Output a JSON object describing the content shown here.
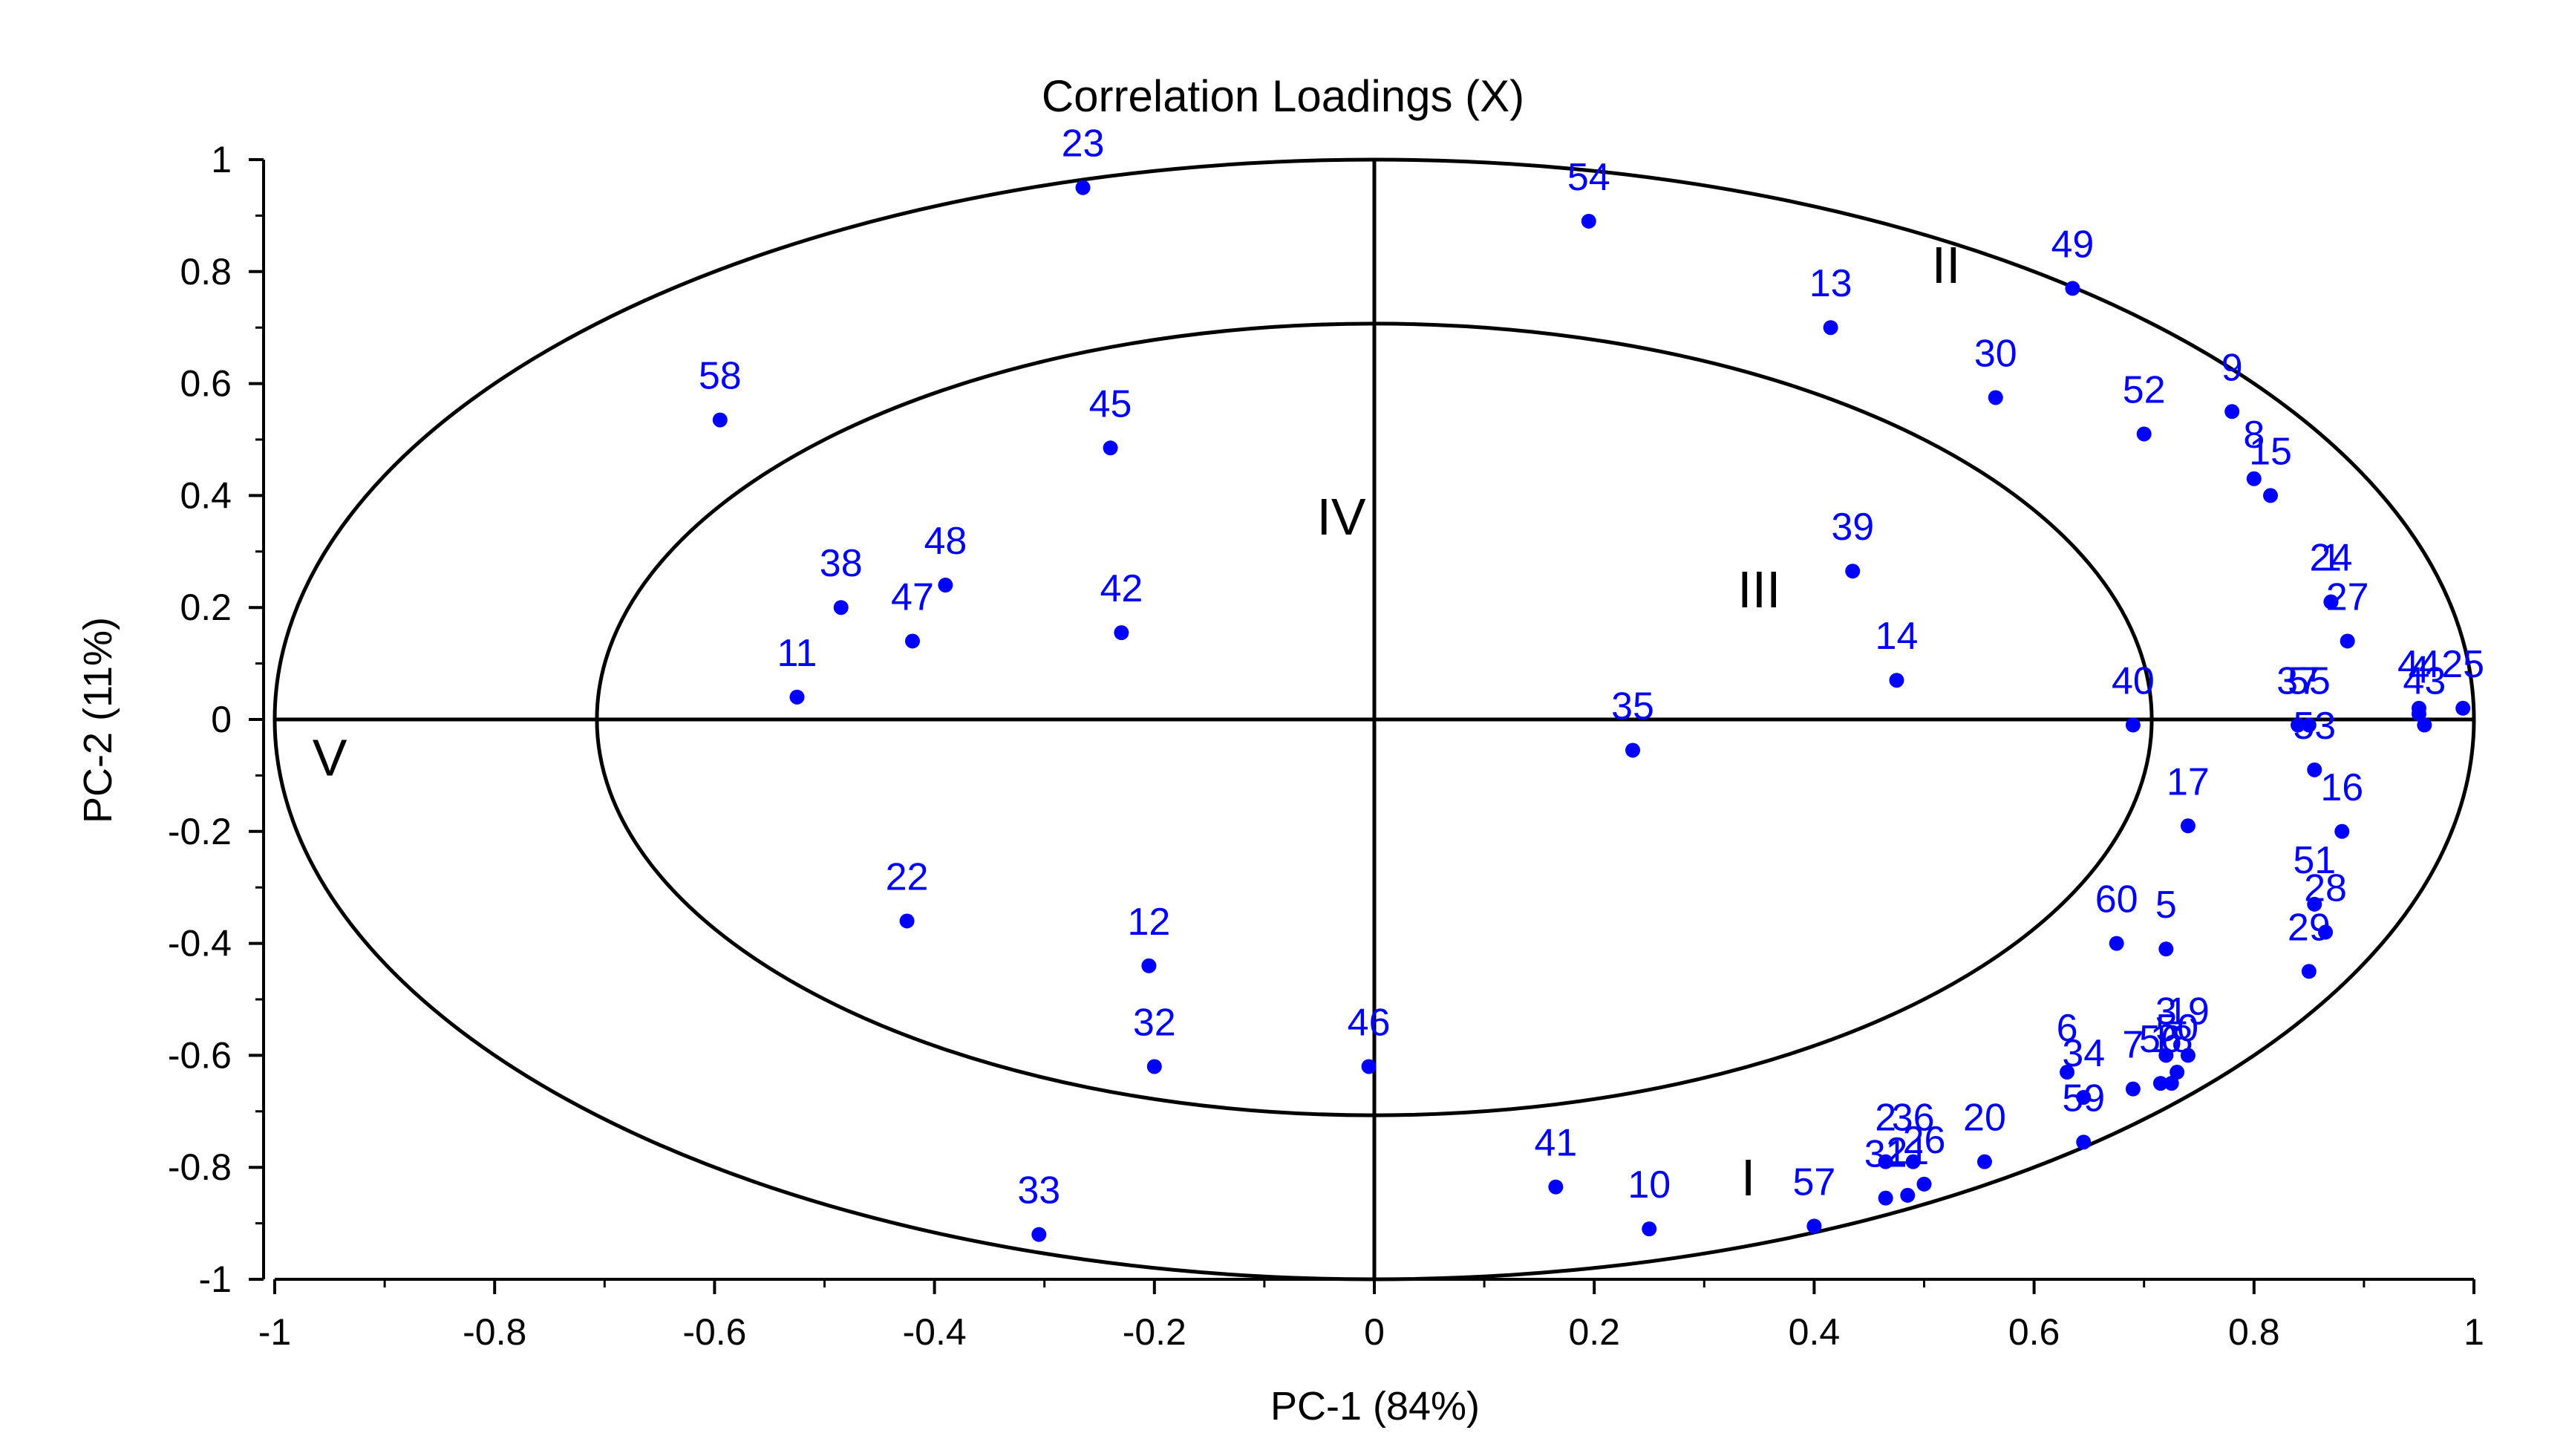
{
  "chart_data": {
    "type": "scatter",
    "title": "Correlation Loadings (X)",
    "xlabel": "PC-1 (84%)",
    "ylabel": "PC-2 (11%)",
    "xlim": [
      -1,
      1
    ],
    "ylim": [
      -1,
      1
    ],
    "xticks": [
      "-1",
      "-0.8",
      "-0.6",
      "-0.4",
      "-0.2",
      "0",
      "0.2",
      "0.4",
      "0.6",
      "0.8",
      "1"
    ],
    "xtick_values": [
      -1,
      -0.8,
      -0.6,
      -0.4,
      -0.2,
      0,
      0.2,
      0.4,
      0.6,
      0.8,
      1
    ],
    "yticks": [
      "1",
      "0.8",
      "0.6",
      "0.4",
      "0.2",
      "0",
      "-0.2",
      "-0.4",
      "-0.6",
      "-0.8",
      "-1"
    ],
    "ytick_values": [
      1,
      0.8,
      0.6,
      0.4,
      0.2,
      0,
      -0.2,
      -0.4,
      -0.6,
      -0.8,
      -1
    ],
    "ellipses": [
      {
        "name": "outer-ellipse",
        "radius_fraction": 1.0
      },
      {
        "name": "inner-ellipse",
        "radius_fraction": 0.707
      }
    ],
    "point_color": "#0000ff",
    "regions": [
      {
        "label": "I",
        "x": 0.34,
        "y": -0.85
      },
      {
        "label": "II",
        "x": 0.52,
        "y": 0.78
      },
      {
        "label": "III",
        "x": 0.35,
        "y": 0.2
      },
      {
        "label": "IV",
        "x": -0.03,
        "y": 0.33
      },
      {
        "label": "V",
        "x": -0.95,
        "y": -0.1
      }
    ],
    "points": [
      {
        "label": "1",
        "x": 0.87,
        "y": 0.21
      },
      {
        "label": "2",
        "x": 0.465,
        "y": -0.79
      },
      {
        "label": "3",
        "x": 0.72,
        "y": -0.6
      },
      {
        "label": "4",
        "x": 0.95,
        "y": 0.01
      },
      {
        "label": "5",
        "x": 0.72,
        "y": -0.41
      },
      {
        "label": "6",
        "x": 0.63,
        "y": -0.63
      },
      {
        "label": "7",
        "x": 0.69,
        "y": -0.66
      },
      {
        "label": "8",
        "x": 0.8,
        "y": 0.43
      },
      {
        "label": "9",
        "x": 0.78,
        "y": 0.55
      },
      {
        "label": "10",
        "x": 0.25,
        "y": -0.91
      },
      {
        "label": "11",
        "x": -0.525,
        "y": 0.04
      },
      {
        "label": "12",
        "x": -0.205,
        "y": -0.44
      },
      {
        "label": "13",
        "x": 0.415,
        "y": 0.7
      },
      {
        "label": "14",
        "x": 0.475,
        "y": 0.07
      },
      {
        "label": "15",
        "x": 0.815,
        "y": 0.4
      },
      {
        "label": "16",
        "x": 0.88,
        "y": -0.2
      },
      {
        "label": "17",
        "x": 0.74,
        "y": -0.19
      },
      {
        "label": "18",
        "x": 0.725,
        "y": -0.65
      },
      {
        "label": "19",
        "x": 0.74,
        "y": -0.6
      },
      {
        "label": "20",
        "x": 0.555,
        "y": -0.79
      },
      {
        "label": "21",
        "x": 0.485,
        "y": -0.85
      },
      {
        "label": "22",
        "x": -0.425,
        "y": -0.36
      },
      {
        "label": "23",
        "x": -0.265,
        "y": 0.95
      },
      {
        "label": "24",
        "x": 0.87,
        "y": 0.21
      },
      {
        "label": "25",
        "x": 0.99,
        "y": 0.02
      },
      {
        "label": "26",
        "x": 0.5,
        "y": -0.83
      },
      {
        "label": "27",
        "x": 0.885,
        "y": 0.14
      },
      {
        "label": "28",
        "x": 0.865,
        "y": -0.38
      },
      {
        "label": "29",
        "x": 0.85,
        "y": -0.45
      },
      {
        "label": "30",
        "x": 0.565,
        "y": 0.575
      },
      {
        "label": "31",
        "x": 0.465,
        "y": -0.855
      },
      {
        "label": "32",
        "x": -0.2,
        "y": -0.62
      },
      {
        "label": "33",
        "x": -0.305,
        "y": -0.92
      },
      {
        "label": "34",
        "x": 0.645,
        "y": -0.675
      },
      {
        "label": "35",
        "x": 0.235,
        "y": -0.055
      },
      {
        "label": "36",
        "x": 0.49,
        "y": -0.79
      },
      {
        "label": "37",
        "x": 0.84,
        "y": -0.01
      },
      {
        "label": "38",
        "x": -0.485,
        "y": 0.2
      },
      {
        "label": "39",
        "x": 0.435,
        "y": 0.265
      },
      {
        "label": "40",
        "x": 0.69,
        "y": -0.01
      },
      {
        "label": "41",
        "x": 0.165,
        "y": -0.835
      },
      {
        "label": "42",
        "x": -0.23,
        "y": 0.155
      },
      {
        "label": "43",
        "x": 0.955,
        "y": -0.01
      },
      {
        "label": "44",
        "x": 0.95,
        "y": 0.02
      },
      {
        "label": "45",
        "x": -0.24,
        "y": 0.485
      },
      {
        "label": "46",
        "x": -0.005,
        "y": -0.62
      },
      {
        "label": "47",
        "x": -0.42,
        "y": 0.14
      },
      {
        "label": "48",
        "x": -0.39,
        "y": 0.24
      },
      {
        "label": "49",
        "x": 0.635,
        "y": 0.77
      },
      {
        "label": "50",
        "x": 0.73,
        "y": -0.63
      },
      {
        "label": "51",
        "x": 0.855,
        "y": -0.33
      },
      {
        "label": "52",
        "x": 0.7,
        "y": 0.51
      },
      {
        "label": "53",
        "x": 0.855,
        "y": -0.09
      },
      {
        "label": "54",
        "x": 0.195,
        "y": 0.89
      },
      {
        "label": "55",
        "x": 0.85,
        "y": -0.01
      },
      {
        "label": "56",
        "x": 0.715,
        "y": -0.65
      },
      {
        "label": "57",
        "x": 0.4,
        "y": -0.905
      },
      {
        "label": "58",
        "x": -0.595,
        "y": 0.535
      },
      {
        "label": "59",
        "x": 0.645,
        "y": -0.755
      },
      {
        "label": "60",
        "x": 0.675,
        "y": -0.4
      }
    ]
  }
}
